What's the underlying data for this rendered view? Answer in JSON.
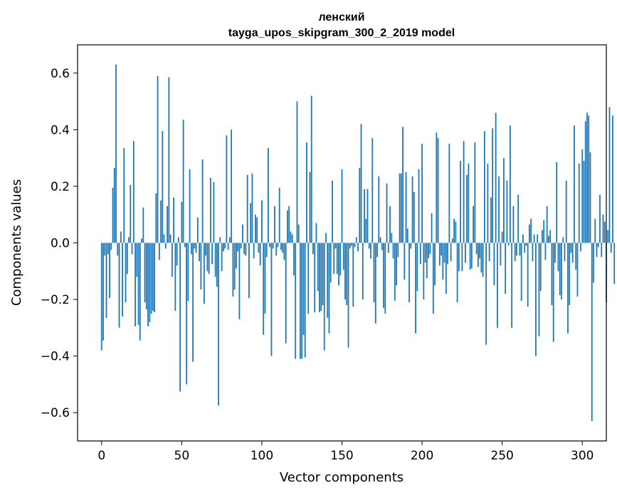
{
  "chart_data": {
    "type": "bar",
    "title": "ленский",
    "subtitle": "tayga_upos_skipgram_300_2_2019 model",
    "xlabel": "Vector components",
    "ylabel": "Components values",
    "xlim": [
      -15,
      315
    ],
    "ylim": [
      -0.7,
      0.7
    ],
    "x_ticks": [
      0,
      50,
      100,
      150,
      200,
      250,
      300
    ],
    "x_tick_labels": [
      "0",
      "50",
      "100",
      "150",
      "200",
      "250",
      "300"
    ],
    "y_ticks": [
      -0.6,
      -0.4,
      -0.2,
      0.0,
      0.2,
      0.4,
      0.6
    ],
    "y_tick_labels": [
      "−0.6",
      "−0.4",
      "−0.2",
      "0.0",
      "0.2",
      "0.4",
      "0.6"
    ],
    "bar_color": "#1f77b4",
    "grid": false,
    "values": [
      -0.38,
      -0.345,
      -0.045,
      -0.265,
      -0.04,
      -0.195,
      -0.025,
      0.195,
      0.265,
      0.63,
      -0.045,
      -0.3,
      0.04,
      -0.26,
      0.335,
      -0.21,
      -0.11,
      0.02,
      0.205,
      -0.04,
      0.36,
      -0.295,
      -0.12,
      -0.29,
      -0.345,
      0.015,
      0.125,
      -0.21,
      -0.235,
      -0.295,
      -0.28,
      -0.25,
      -0.24,
      -0.245,
      0.175,
      0.59,
      -0.06,
      0.15,
      0.395,
      0.03,
      -0.02,
      0.13,
      0.585,
      0.03,
      -0.12,
      0.16,
      -0.24,
      -0.08,
      0.02,
      -0.525,
      0.145,
      0.435,
      -0.015,
      -0.5,
      -0.205,
      0.26,
      -0.04,
      -0.42,
      -0.02,
      -0.035,
      0.09,
      -0.065,
      -0.165,
      0.295,
      -0.215,
      -0.045,
      -0.1,
      -0.11,
      0.23,
      -0.075,
      0.215,
      -0.12,
      -0.155,
      -0.575,
      0.02,
      -0.1,
      -0.03,
      -0.02,
      0.38,
      -0.025,
      0.02,
      0.4,
      -0.19,
      -0.165,
      -0.09,
      -0.03,
      -0.27,
      -0.02,
      0.065,
      -0.04,
      -0.045,
      0.24,
      -0.195,
      0.14,
      0.245,
      -0.055,
      0.1,
      0.09,
      -0.035,
      -0.08,
      0.15,
      -0.325,
      -0.25,
      -0.05,
      0.335,
      -0.015,
      -0.4,
      -0.02,
      0.13,
      -0.045,
      -0.015,
      0.195,
      -0.025,
      -0.035,
      -0.06,
      -0.355,
      0.115,
      0.13,
      0.04,
      0.03,
      -0.115,
      -0.41,
      0.5,
      0.065,
      -0.41,
      -0.41,
      -0.325,
      -0.405,
      0.355,
      -0.25,
      0.25,
      0.52,
      -0.04,
      -0.245,
      0.07,
      -0.17,
      -0.245,
      -0.24,
      -0.22,
      -0.38,
      0.035,
      -0.265,
      -0.32,
      -0.14,
      0.22,
      -0.11,
      -0.02,
      -0.11,
      -0.15,
      -0.115,
      0.26,
      -0.095,
      -0.2,
      -0.22,
      -0.37,
      -0.02,
      -0.01,
      -0.225,
      -0.015,
      0.02,
      -0.03,
      0.265,
      0.42,
      -0.2,
      0.19,
      0.085,
      0.19,
      -0.02,
      -0.055,
      0.37,
      -0.21,
      -0.285,
      -0.05,
      0.235,
      0.02,
      -0.025,
      -0.23,
      -0.25,
      0.21,
      -0.035,
      0.13,
      0.035,
      -0.055,
      -0.205,
      -0.15,
      -0.05,
      0.245,
      0.245,
      0.41,
      -0.13,
      0.25,
      0.05,
      -0.21,
      -0.02,
      0.235,
      0.18,
      -0.32,
      -0.17,
      0.26,
      -0.075,
      0.35,
      -0.2,
      -0.07,
      -0.125,
      -0.055,
      -0.04,
      0.105,
      -0.25,
      -0.15,
      0.39,
      0.37,
      -0.08,
      -0.045,
      -0.13,
      -0.07,
      -0.18,
      -0.075,
      0.35,
      -0.065,
      0.015,
      0.085,
      0.075,
      -0.21,
      -0.1,
      0.29,
      -0.1,
      0.36,
      -0.07,
      0.24,
      0.28,
      -0.095,
      -0.09,
      0.13,
      0.355,
      -0.04,
      -0.085,
      -0.055,
      -0.105,
      -0.12,
      0.395,
      -0.36,
      0.28,
      -0.065,
      0.16,
      0.405,
      -0.15,
      0.46,
      -0.3,
      0.235,
      -0.08,
      0.04,
      0.3,
      -0.18,
      0.22,
      -0.01,
      0.415,
      -0.3,
      0.13,
      -0.065,
      -0.045,
      0.17,
      -0.045,
      -0.205,
      0.03,
      -0.035,
      -0.01,
      -0.225,
      0.065,
      0.085,
      -0.065,
      0.03,
      -0.4,
      0.03,
      -0.33,
      -0.17,
      0.045,
      0.08,
      -0.06,
      0.13,
      0.025,
      0.045,
      -0.22,
      -0.35,
      -0.07,
      0.285,
      -0.1,
      -0.185,
      -0.2,
      0.02,
      -0.065,
      0.22,
      -0.32,
      -0.22,
      -0.035,
      -0.07,
      0.415,
      -0.095,
      -0.19,
      0.28,
      -0.03,
      0.33,
      0.29,
      0.43,
      0.46,
      0.45,
      0.32,
      -0.63,
      -0.14,
      0.085,
      -0.05,
      -0.015,
      0.17,
      -0.05,
      0.1,
      0.075,
      -0.21,
      0.045,
      0.48,
      -0.035,
      0.45,
      -0.145
    ]
  }
}
